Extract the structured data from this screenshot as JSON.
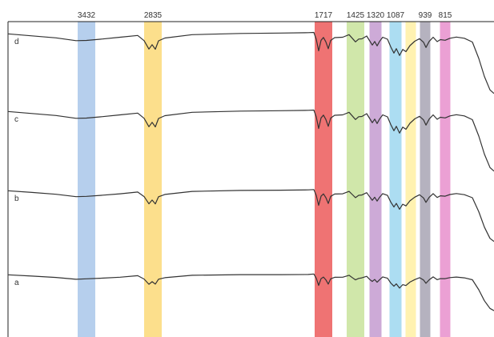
{
  "chart_data": {
    "type": "line",
    "title": "",
    "xlabel": "",
    "ylabel": "",
    "x_direction": "descending wavenumber (left to right)",
    "grid": false,
    "legend": "none",
    "highlight_bands": [
      {
        "label": "3432",
        "color": "#a9c7ea"
      },
      {
        "label": "2835",
        "color": "#fcd978"
      },
      {
        "label": "1717",
        "color": "#ec5a5a"
      },
      {
        "label": "1425",
        "color": "#c8e39b"
      },
      {
        "label": "1320",
        "color": "#c49bd0"
      },
      {
        "label": "1087",
        "color": "#9dd7f0"
      },
      {
        "label": "939",
        "color": "#a8a4b4"
      },
      {
        "label": "815",
        "color": "#e88fcc"
      }
    ],
    "extra_band": {
      "color": "#fff1a8"
    },
    "series": [
      {
        "name": "d"
      },
      {
        "name": "c"
      },
      {
        "name": "b"
      },
      {
        "name": "a"
      }
    ]
  }
}
